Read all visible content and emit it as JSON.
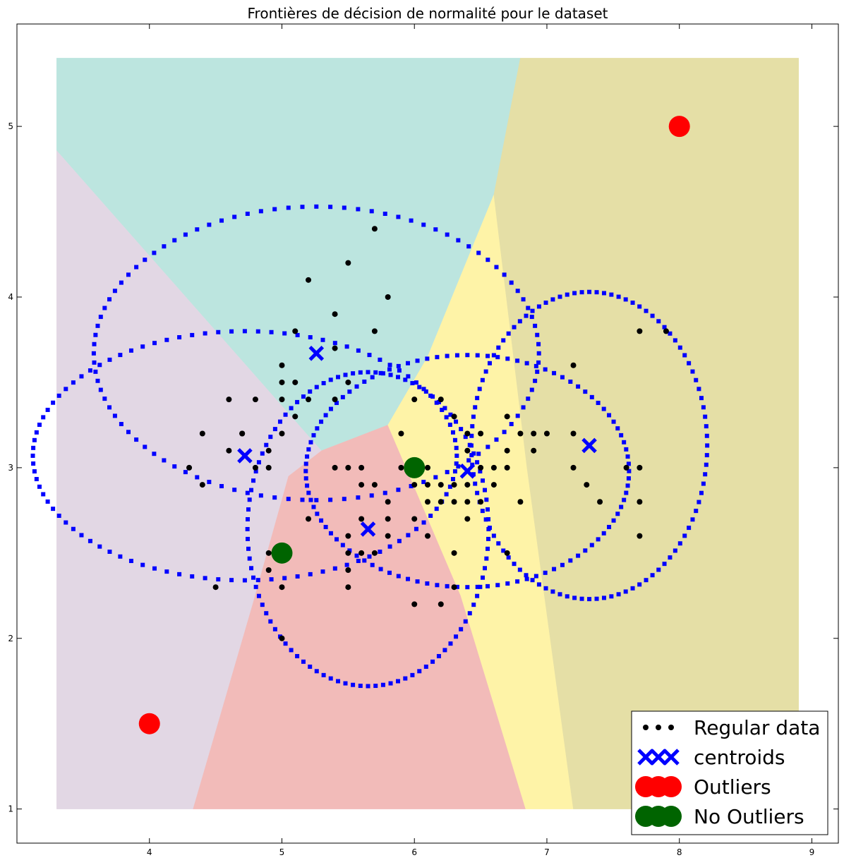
{
  "chart_data": {
    "type": "scatter",
    "title": "Frontières de décision de normalité pour le dataset",
    "xlabel": "",
    "ylabel": "",
    "xlim": [
      3.0,
      9.2
    ],
    "ylim": [
      0.8,
      5.6
    ],
    "x_ticks": [
      4,
      5,
      6,
      7,
      8,
      9
    ],
    "y_ticks": [
      1,
      2,
      3,
      4,
      5
    ],
    "grid": false,
    "legend_position": "bottom-right",
    "background": {
      "extent_x": [
        3.3,
        8.9
      ],
      "extent_y": [
        1.0,
        5.4
      ],
      "regions": [
        {
          "color": "#e2d7e4",
          "polygon": [
            [
              3.3,
              1.0
            ],
            [
              4.33,
              1.0
            ],
            [
              4.78,
              2.2
            ],
            [
              5.05,
              2.95
            ],
            [
              5.3,
              3.1
            ],
            [
              3.3,
              4.86
            ]
          ]
        },
        {
          "color": "#bce5df",
          "polygon": [
            [
              3.3,
              4.86
            ],
            [
              5.3,
              3.1
            ],
            [
              5.8,
              3.25
            ],
            [
              6.1,
              3.65
            ],
            [
              6.6,
              4.6
            ],
            [
              6.8,
              5.4
            ],
            [
              3.3,
              5.4
            ]
          ]
        },
        {
          "color": "#f2bbb9",
          "polygon": [
            [
              4.33,
              1.0
            ],
            [
              6.84,
              1.0
            ],
            [
              6.35,
              2.25
            ],
            [
              5.8,
              3.25
            ],
            [
              5.3,
              3.1
            ],
            [
              5.05,
              2.95
            ],
            [
              4.78,
              2.2
            ]
          ]
        },
        {
          "color": "#fef3a7",
          "polygon": [
            [
              6.84,
              1.0
            ],
            [
              7.2,
              1.0
            ],
            [
              6.85,
              3.0
            ],
            [
              6.6,
              4.6
            ],
            [
              6.1,
              3.65
            ],
            [
              5.8,
              3.25
            ],
            [
              6.35,
              2.25
            ]
          ]
        },
        {
          "color": "#e5dfa6",
          "polygon": [
            [
              7.2,
              1.0
            ],
            [
              8.9,
              1.0
            ],
            [
              8.9,
              5.4
            ],
            [
              6.8,
              5.4
            ],
            [
              6.6,
              4.6
            ],
            [
              6.85,
              3.0
            ]
          ]
        }
      ]
    },
    "series": [
      {
        "name": "Regular data",
        "color": "#000000",
        "marker": "dot",
        "points": [
          [
            5.1,
            3.5
          ],
          [
            4.9,
            3.0
          ],
          [
            4.7,
            3.2
          ],
          [
            4.6,
            3.1
          ],
          [
            5.0,
            3.6
          ],
          [
            5.4,
            3.9
          ],
          [
            4.6,
            3.4
          ],
          [
            5.0,
            3.4
          ],
          [
            4.4,
            2.9
          ],
          [
            4.9,
            3.1
          ],
          [
            5.4,
            3.7
          ],
          [
            4.8,
            3.4
          ],
          [
            4.8,
            3.0
          ],
          [
            4.3,
            3.0
          ],
          [
            5.8,
            4.0
          ],
          [
            5.7,
            4.4
          ],
          [
            5.7,
            3.8
          ],
          [
            5.1,
            3.8
          ],
          [
            5.4,
            3.4
          ],
          [
            5.2,
            4.1
          ],
          [
            5.5,
            4.2
          ],
          [
            5.0,
            3.2
          ],
          [
            5.5,
            3.5
          ],
          [
            4.4,
            3.2
          ],
          [
            5.0,
            3.5
          ],
          [
            4.5,
            2.3
          ],
          [
            5.1,
            3.3
          ],
          [
            5.2,
            3.4
          ],
          [
            4.7,
            3.2
          ],
          [
            4.9,
            2.4
          ],
          [
            5.0,
            2.0
          ],
          [
            5.0,
            2.3
          ],
          [
            4.9,
            2.5
          ],
          [
            5.5,
            2.3
          ],
          [
            5.5,
            2.4
          ],
          [
            5.5,
            2.5
          ],
          [
            5.5,
            2.6
          ],
          [
            5.6,
            2.5
          ],
          [
            5.7,
            2.5
          ],
          [
            5.6,
            2.7
          ],
          [
            5.6,
            2.9
          ],
          [
            5.7,
            2.9
          ],
          [
            5.8,
            2.7
          ],
          [
            5.8,
            2.6
          ],
          [
            5.9,
            3.0
          ],
          [
            5.6,
            3.0
          ],
          [
            5.2,
            2.7
          ],
          [
            5.4,
            3.0
          ],
          [
            5.5,
            3.0
          ],
          [
            5.8,
            2.8
          ],
          [
            6.0,
            2.2
          ],
          [
            6.2,
            2.2
          ],
          [
            6.0,
            2.7
          ],
          [
            6.1,
            2.6
          ],
          [
            5.9,
            3.2
          ],
          [
            6.0,
            3.4
          ],
          [
            6.3,
            2.5
          ],
          [
            6.3,
            3.3
          ],
          [
            6.1,
            2.8
          ],
          [
            6.1,
            3.0
          ],
          [
            6.2,
            2.9
          ],
          [
            6.3,
            2.9
          ],
          [
            6.4,
            2.9
          ],
          [
            6.6,
            2.9
          ],
          [
            6.7,
            3.1
          ],
          [
            6.3,
            2.3
          ],
          [
            6.2,
            2.8
          ],
          [
            6.4,
            2.7
          ],
          [
            6.5,
            2.8
          ],
          [
            6.5,
            3.2
          ],
          [
            6.4,
            3.1
          ],
          [
            6.3,
            2.8
          ],
          [
            6.6,
            3.0
          ],
          [
            6.8,
            2.8
          ],
          [
            6.7,
            3.0
          ],
          [
            6.9,
            3.1
          ],
          [
            6.9,
            3.2
          ],
          [
            6.8,
            3.2
          ],
          [
            6.7,
            3.3
          ],
          [
            6.7,
            2.5
          ],
          [
            7.0,
            3.2
          ],
          [
            7.2,
            3.0
          ],
          [
            7.2,
            3.2
          ],
          [
            7.2,
            3.6
          ],
          [
            7.3,
            2.9
          ],
          [
            7.4,
            2.8
          ],
          [
            7.6,
            3.0
          ],
          [
            7.7,
            3.8
          ],
          [
            7.9,
            3.8
          ],
          [
            7.7,
            2.8
          ],
          [
            7.7,
            2.6
          ],
          [
            7.7,
            3.0
          ],
          [
            6.0,
            2.9
          ],
          [
            6.1,
            2.9
          ],
          [
            6.2,
            3.4
          ],
          [
            6.4,
            3.2
          ],
          [
            6.5,
            3.0
          ],
          [
            6.4,
            2.8
          ]
        ]
      },
      {
        "name": "centroids",
        "color": "#0000ff",
        "marker": "x",
        "points": [
          [
            5.26,
            3.67
          ],
          [
            4.72,
            3.07
          ],
          [
            5.65,
            2.64
          ],
          [
            6.4,
            2.98
          ],
          [
            7.32,
            3.13
          ]
        ],
        "radii": [
          [
            1.68,
            0.86
          ],
          [
            1.6,
            0.73
          ],
          [
            0.91,
            0.92
          ],
          [
            1.22,
            0.68
          ],
          [
            0.89,
            0.9
          ]
        ]
      },
      {
        "name": "Outliers",
        "color": "#ff0000",
        "marker": "large-circle",
        "points": [
          [
            8.0,
            5.0
          ],
          [
            4.0,
            1.5
          ]
        ]
      },
      {
        "name": "No Outliers",
        "color": "#006400",
        "marker": "large-circle",
        "points": [
          [
            5.0,
            2.5
          ],
          [
            6.0,
            3.0
          ]
        ]
      }
    ]
  }
}
